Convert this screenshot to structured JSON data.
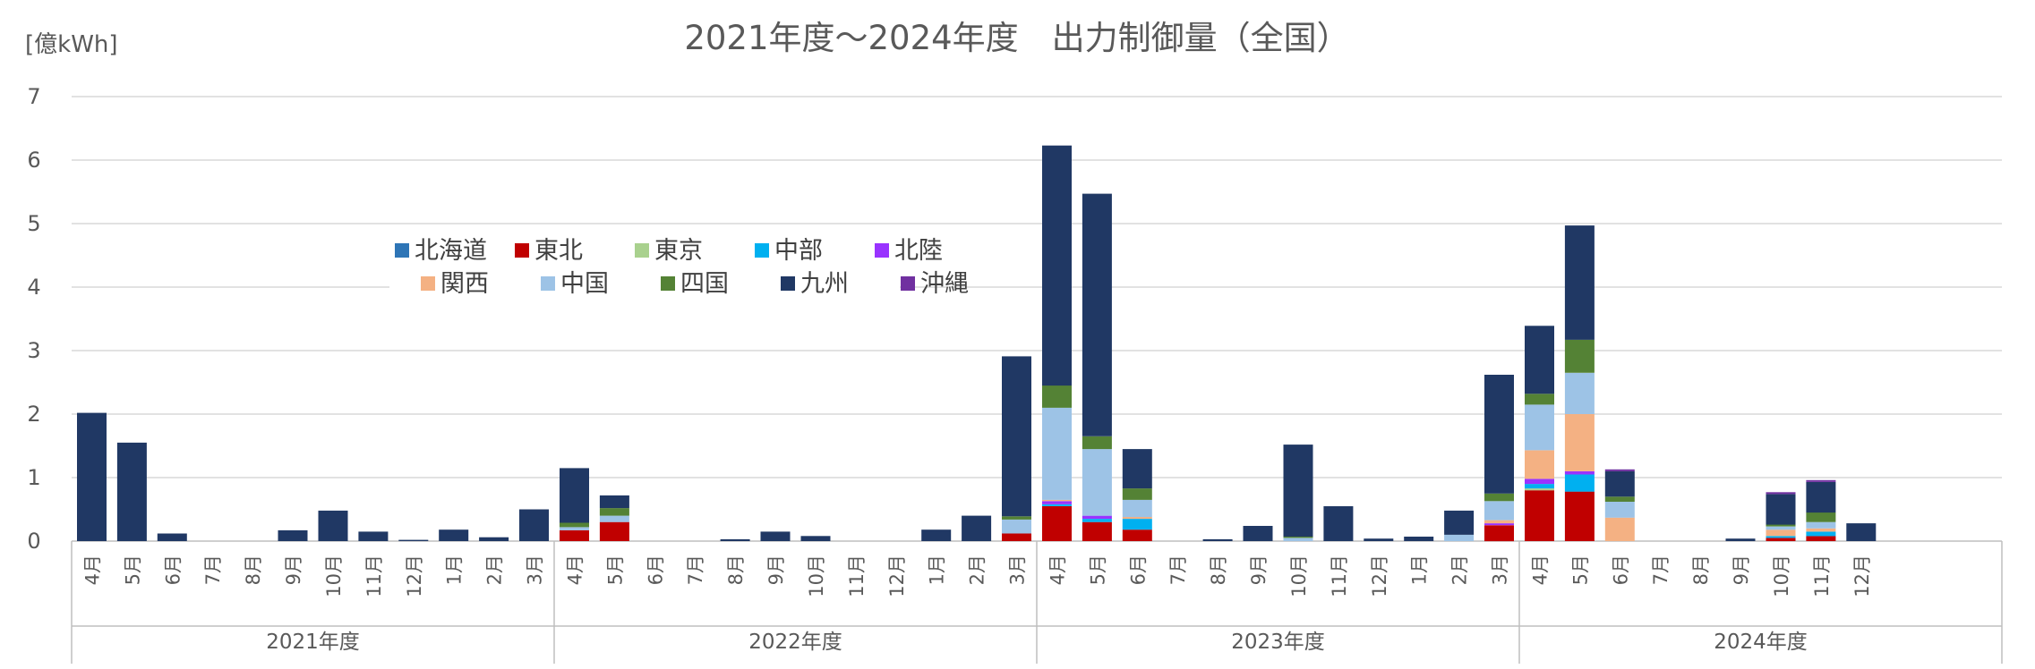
{
  "chart_data": {
    "type": "stacked-bar",
    "title": "2021年度～2024年度　出力制御量（全国）",
    "unit_label": "[億kWh]",
    "ylim": [
      0,
      7
    ],
    "yticks": [
      0,
      1,
      2,
      3,
      4,
      5,
      6,
      7
    ],
    "grid": true,
    "legend_position": "upper-left",
    "fiscal_years": [
      {
        "label": "2021年度",
        "months": [
          "4月",
          "5月",
          "6月",
          "7月",
          "8月",
          "9月",
          "10月",
          "11月",
          "12月",
          "1月",
          "2月",
          "3月"
        ]
      },
      {
        "label": "2022年度",
        "months": [
          "4月",
          "5月",
          "6月",
          "7月",
          "8月",
          "9月",
          "10月",
          "11月",
          "12月",
          "1月",
          "2月",
          "3月"
        ]
      },
      {
        "label": "2023年度",
        "months": [
          "4月",
          "5月",
          "6月",
          "7月",
          "8月",
          "9月",
          "10月",
          "11月",
          "12月",
          "1月",
          "2月",
          "3月"
        ]
      },
      {
        "label": "2024年度",
        "months": [
          "4月",
          "5月",
          "6月",
          "7月",
          "8月",
          "9月",
          "10月",
          "11月",
          "12月"
        ]
      }
    ],
    "series": [
      {
        "name": "北海道",
        "color": "#2e75b6",
        "values": [
          0,
          0,
          0,
          0,
          0,
          0,
          0,
          0,
          0,
          0,
          0,
          0,
          0,
          0,
          0,
          0,
          0,
          0,
          0,
          0,
          0,
          0,
          0,
          0,
          0,
          0,
          0,
          0,
          0,
          0,
          0,
          0,
          0,
          0,
          0,
          0,
          0,
          0,
          0,
          0,
          0,
          0,
          0,
          0,
          0
        ]
      },
      {
        "name": "東北",
        "color": "#c00000",
        "values": [
          0,
          0,
          0,
          0,
          0,
          0,
          0,
          0,
          0,
          0,
          0,
          0,
          0.17,
          0.3,
          0,
          0,
          0,
          0,
          0,
          0,
          0,
          0,
          0,
          0.12,
          0.55,
          0.3,
          0.18,
          0,
          0,
          0,
          0,
          0,
          0,
          0,
          0,
          0.25,
          0.8,
          0.78,
          0,
          0,
          0,
          0,
          0.05,
          0.08,
          0
        ]
      },
      {
        "name": "東京",
        "color": "#a9d18e",
        "values": [
          0,
          0,
          0,
          0,
          0,
          0,
          0,
          0,
          0,
          0,
          0,
          0,
          0,
          0,
          0,
          0,
          0,
          0,
          0,
          0,
          0,
          0,
          0,
          0,
          0,
          0,
          0,
          0,
          0,
          0,
          0,
          0,
          0,
          0,
          0,
          0,
          0.03,
          0,
          0,
          0,
          0,
          0,
          0,
          0,
          0
        ]
      },
      {
        "name": "中部",
        "color": "#00b0f0",
        "values": [
          0,
          0,
          0,
          0,
          0,
          0,
          0,
          0,
          0,
          0,
          0,
          0,
          0,
          0,
          0,
          0,
          0,
          0,
          0,
          0,
          0,
          0,
          0,
          0,
          0.03,
          0.05,
          0.17,
          0,
          0,
          0,
          0,
          0,
          0,
          0,
          0,
          0,
          0.07,
          0.27,
          0,
          0,
          0,
          0,
          0.03,
          0.07,
          0
        ]
      },
      {
        "name": "北陸",
        "color": "#9933ff",
        "values": [
          0,
          0,
          0,
          0,
          0,
          0,
          0,
          0,
          0,
          0,
          0,
          0,
          0,
          0,
          0,
          0,
          0,
          0,
          0,
          0,
          0,
          0,
          0,
          0,
          0.05,
          0.05,
          0,
          0,
          0,
          0,
          0,
          0,
          0,
          0,
          0,
          0.03,
          0.08,
          0.05,
          0,
          0,
          0,
          0,
          0,
          0,
          0
        ]
      },
      {
        "name": "関西",
        "color": "#f4b183",
        "values": [
          0,
          0,
          0,
          0,
          0,
          0,
          0,
          0,
          0,
          0,
          0,
          0,
          0,
          0,
          0,
          0,
          0,
          0,
          0,
          0,
          0,
          0,
          0,
          0,
          0.02,
          0,
          0.03,
          0,
          0,
          0,
          0,
          0,
          0,
          0,
          0,
          0.05,
          0.45,
          0.9,
          0.37,
          0,
          0,
          0,
          0.1,
          0.05,
          0
        ]
      },
      {
        "name": "中国",
        "color": "#9dc3e6",
        "values": [
          0,
          0,
          0,
          0,
          0,
          0,
          0,
          0,
          0,
          0,
          0,
          0,
          0.05,
          0.1,
          0,
          0,
          0,
          0,
          0,
          0,
          0,
          0,
          0,
          0.22,
          1.45,
          1.05,
          0.27,
          0,
          0,
          0,
          0.05,
          0,
          0,
          0,
          0.1,
          0.3,
          0.72,
          0.65,
          0.25,
          0,
          0,
          0,
          0.05,
          0.1,
          0
        ]
      },
      {
        "name": "四国",
        "color": "#548235",
        "values": [
          0,
          0,
          0,
          0,
          0,
          0,
          0,
          0,
          0,
          0,
          0,
          0,
          0.07,
          0.12,
          0,
          0,
          0,
          0,
          0,
          0,
          0,
          0,
          0,
          0.05,
          0.35,
          0.2,
          0.18,
          0,
          0,
          0,
          0.02,
          0,
          0,
          0,
          0,
          0.12,
          0.17,
          0.52,
          0.08,
          0,
          0,
          0,
          0.03,
          0.15,
          0
        ]
      },
      {
        "name": "九州",
        "color": "#203864",
        "values": [
          2.02,
          1.55,
          0.12,
          0,
          0,
          0.17,
          0.48,
          0.15,
          0.02,
          0.18,
          0.06,
          0.5,
          0.86,
          0.2,
          0,
          0,
          0.03,
          0.15,
          0.08,
          0,
          0,
          0.18,
          0.4,
          2.52,
          3.78,
          3.82,
          0.62,
          0,
          0.03,
          0.24,
          1.45,
          0.55,
          0.04,
          0.07,
          0.38,
          1.87,
          1.07,
          1.8,
          0.4,
          0,
          0,
          0.04,
          0.48,
          0.48,
          0.28
        ]
      },
      {
        "name": "沖縄",
        "color": "#7030a0",
        "values": [
          0,
          0,
          0,
          0,
          0,
          0,
          0,
          0,
          0,
          0,
          0,
          0,
          0,
          0,
          0,
          0,
          0,
          0,
          0,
          0,
          0,
          0,
          0,
          0,
          0,
          0,
          0,
          0,
          0,
          0,
          0,
          0,
          0,
          0,
          0,
          0,
          0,
          0,
          0.03,
          0,
          0,
          0,
          0.03,
          0.03,
          0
        ]
      }
    ]
  }
}
